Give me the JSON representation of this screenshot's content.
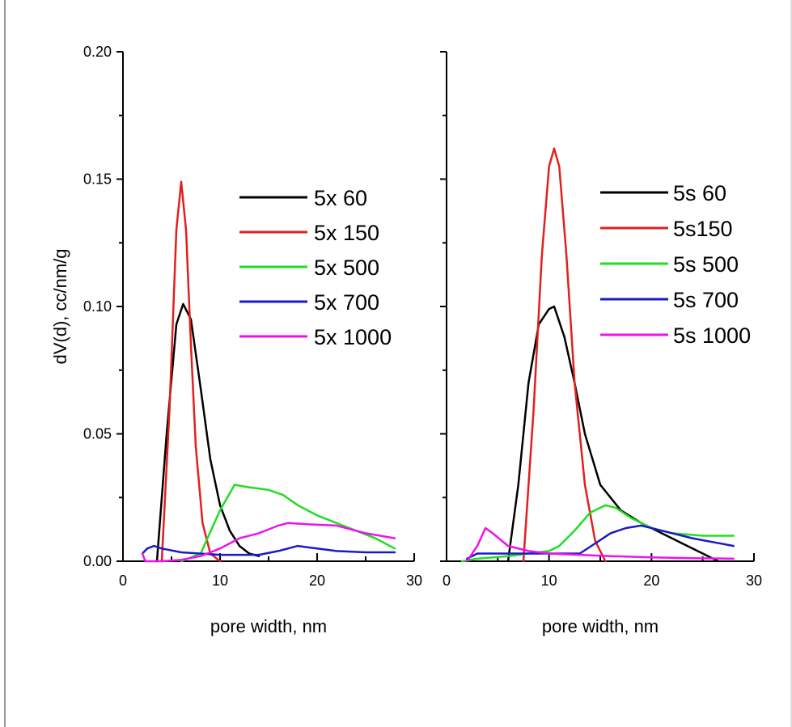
{
  "chart_data": [
    {
      "type": "line",
      "xlabel": "pore width, nm",
      "ylabel": "dV(d), cc/nm/g",
      "xlim": [
        0,
        30
      ],
      "ylim": [
        0,
        0.2
      ],
      "x_ticks": [
        "0",
        "10",
        "20",
        "30"
      ],
      "y_ticks": [
        "0.00",
        "0.05",
        "0.10",
        "0.15",
        "0.20"
      ],
      "legend_position": "center-right",
      "grid": false,
      "series": [
        {
          "name": "5x 60",
          "color": "#000000",
          "x": [
            3.5,
            4.5,
            5.5,
            6.2,
            7.0,
            8.0,
            9.0,
            10.0,
            11.0,
            12.0,
            13.0,
            14.0
          ],
          "y": [
            0.0,
            0.05,
            0.093,
            0.101,
            0.095,
            0.068,
            0.04,
            0.022,
            0.012,
            0.006,
            0.003,
            0.002
          ]
        },
        {
          "name": "5x 150",
          "color": "#e41e1e",
          "x": [
            4.0,
            4.8,
            5.5,
            6.0,
            6.5,
            7.0,
            7.5,
            8.2,
            9.0,
            10.0
          ],
          "y": [
            0.0,
            0.06,
            0.13,
            0.149,
            0.13,
            0.085,
            0.045,
            0.015,
            0.003,
            0.0
          ]
        },
        {
          "name": "5x 500",
          "color": "#22dd22",
          "x": [
            6.0,
            8.0,
            10.0,
            11.5,
            13.0,
            15.0,
            16.5,
            18.0,
            20.0,
            22.0,
            24.0,
            26.0,
            28.0
          ],
          "y": [
            0.0,
            0.003,
            0.02,
            0.03,
            0.029,
            0.028,
            0.026,
            0.022,
            0.018,
            0.015,
            0.012,
            0.009,
            0.005
          ]
        },
        {
          "name": "5x 700",
          "color": "#1a1ac8",
          "x": [
            2.0,
            2.5,
            3.2,
            4.0,
            6.0,
            10.0,
            14.0,
            16.0,
            18.0,
            20.0,
            22.0,
            25.0,
            28.0
          ],
          "y": [
            0.003,
            0.005,
            0.006,
            0.005,
            0.0035,
            0.0025,
            0.0025,
            0.004,
            0.006,
            0.005,
            0.004,
            0.0035,
            0.0035
          ]
        },
        {
          "name": "5x 1000",
          "color": "#ee11ee",
          "x": [
            2.0,
            2.3,
            4.0,
            6.0,
            8.0,
            10.0,
            12.0,
            14.0,
            16.0,
            17.0,
            19.0,
            22.0,
            25.0,
            28.0
          ],
          "y": [
            0.003,
            0.0,
            0.0,
            0.0005,
            0.002,
            0.005,
            0.009,
            0.011,
            0.014,
            0.015,
            0.0145,
            0.014,
            0.011,
            0.009
          ]
        }
      ]
    },
    {
      "type": "line",
      "xlabel": "pore width, nm",
      "ylabel": "",
      "xlim": [
        0,
        30
      ],
      "ylim": [
        0,
        0.2
      ],
      "x_ticks": [
        "0",
        "10",
        "20",
        "30"
      ],
      "legend_position": "top-right",
      "grid": false,
      "series": [
        {
          "name": "5s 60",
          "color": "#000000",
          "x": [
            6.0,
            7.0,
            8.0,
            9.0,
            10.0,
            10.5,
            11.5,
            12.5,
            13.5,
            15.0,
            17.0,
            19.0,
            21.0,
            23.0,
            25.0,
            26.5
          ],
          "y": [
            0.0,
            0.03,
            0.07,
            0.093,
            0.099,
            0.1,
            0.088,
            0.07,
            0.05,
            0.03,
            0.02,
            0.015,
            0.011,
            0.007,
            0.003,
            0.0
          ]
        },
        {
          "name": "5s150",
          "color": "#e41e1e",
          "x": [
            7.5,
            8.5,
            9.3,
            10.0,
            10.5,
            11.0,
            11.7,
            12.5,
            13.5,
            14.5,
            15.5
          ],
          "y": [
            0.0,
            0.06,
            0.12,
            0.155,
            0.162,
            0.155,
            0.12,
            0.07,
            0.03,
            0.008,
            0.0
          ]
        },
        {
          "name": "5s 500",
          "color": "#22dd22",
          "x": [
            1.5,
            3.0,
            6.0,
            8.0,
            10.0,
            11.0,
            12.5,
            14.0,
            15.5,
            16.5,
            18.0,
            20.0,
            22.0,
            25.0,
            28.0
          ],
          "y": [
            0.0,
            0.001,
            0.002,
            0.003,
            0.004,
            0.006,
            0.012,
            0.019,
            0.022,
            0.021,
            0.017,
            0.013,
            0.011,
            0.01,
            0.01
          ]
        },
        {
          "name": "5s 700",
          "color": "#1a1ac8",
          "x": [
            2.0,
            3.0,
            6.0,
            10.0,
            13.0,
            14.5,
            16.0,
            17.5,
            19.0,
            21.0,
            24.0,
            28.0
          ],
          "y": [
            0.001,
            0.003,
            0.003,
            0.003,
            0.003,
            0.007,
            0.011,
            0.013,
            0.014,
            0.012,
            0.009,
            0.006
          ]
        },
        {
          "name": "5s 1000",
          "color": "#ee11ee",
          "x": [
            2.0,
            3.0,
            3.8,
            4.5,
            6.0,
            8.0,
            10.0,
            13.0,
            16.0,
            20.0,
            24.0,
            28.0
          ],
          "y": [
            0.0,
            0.006,
            0.013,
            0.011,
            0.006,
            0.004,
            0.003,
            0.0025,
            0.002,
            0.0015,
            0.0012,
            0.001
          ]
        }
      ]
    }
  ]
}
